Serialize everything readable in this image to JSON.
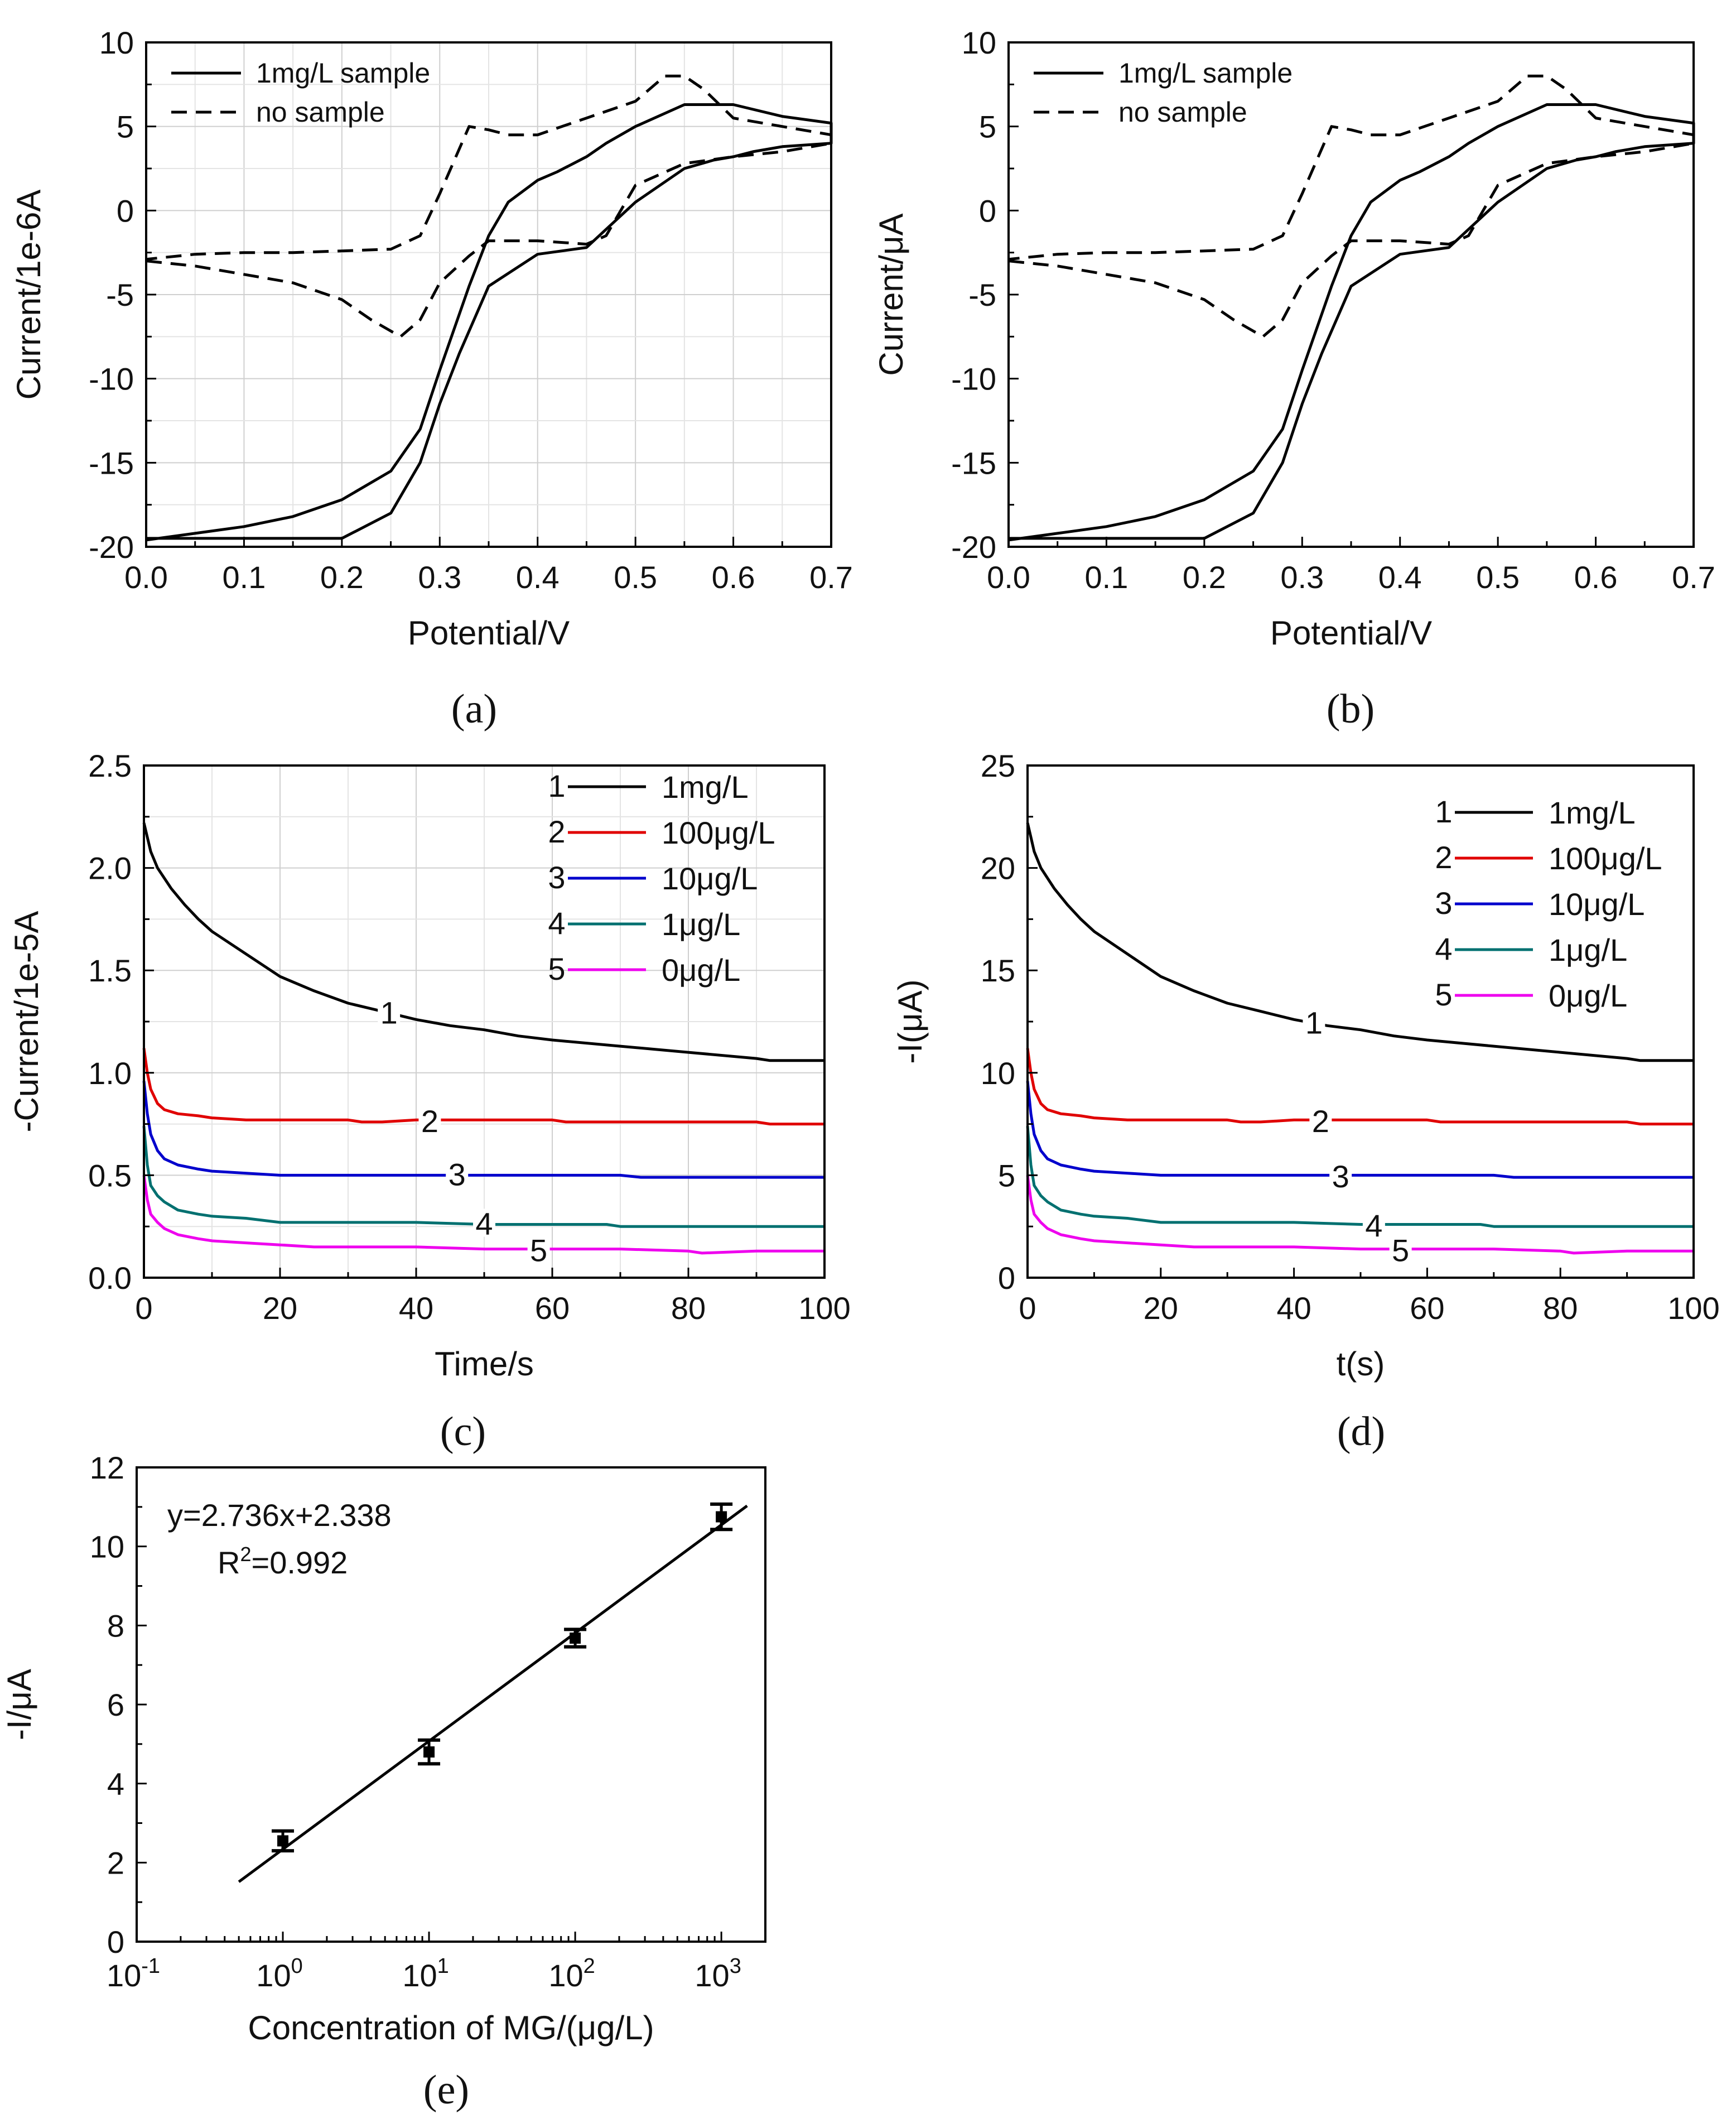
{
  "chart_data": [
    {
      "id": "a",
      "type": "line",
      "caption": "(a)",
      "xlabel": "Potential/V",
      "ylabel": "Current/1e-6A",
      "xlim": [
        0,
        0.7
      ],
      "ylim": [
        -20,
        10
      ],
      "xticks": [
        "0.0",
        "0.1",
        "0.2",
        "0.3",
        "0.4",
        "0.5",
        "0.6",
        "0.7"
      ],
      "yticks": [
        "-20",
        "-15",
        "-10",
        "-5",
        "0",
        "5",
        "10"
      ],
      "grid": true,
      "legend_position": "top-left",
      "series": [
        {
          "name": "1mg/L sample",
          "style": "solid",
          "x": [
            0.0,
            0.05,
            0.1,
            0.15,
            0.2,
            0.25,
            0.28,
            0.3,
            0.32,
            0.35,
            0.4,
            0.45,
            0.5,
            0.55,
            0.58,
            0.6,
            0.62,
            0.65,
            0.7,
            0.7,
            0.65,
            0.6,
            0.55,
            0.5,
            0.47,
            0.45,
            0.42,
            0.4,
            0.37,
            0.35,
            0.33,
            0.3,
            0.28,
            0.25,
            0.2,
            0.15,
            0.1,
            0.05,
            0.0
          ],
          "y": [
            -19.5,
            -19.5,
            -19.5,
            -19.5,
            -19.5,
            -18.0,
            -15.0,
            -11.5,
            -8.5,
            -4.5,
            -2.6,
            -2.2,
            0.5,
            2.5,
            3.0,
            3.2,
            3.5,
            3.8,
            4.0,
            5.2,
            5.6,
            6.3,
            6.3,
            5.0,
            4.0,
            3.2,
            2.3,
            1.8,
            0.5,
            -1.5,
            -4.5,
            -9.5,
            -13.0,
            -15.5,
            -17.2,
            -18.2,
            -18.8,
            -19.2,
            -19.6
          ]
        },
        {
          "name": "no sample",
          "style": "dashed",
          "x": [
            0.0,
            0.05,
            0.1,
            0.15,
            0.2,
            0.23,
            0.26,
            0.28,
            0.3,
            0.33,
            0.35,
            0.4,
            0.45,
            0.47,
            0.5,
            0.55,
            0.6,
            0.65,
            0.7,
            0.7,
            0.65,
            0.6,
            0.57,
            0.55,
            0.53,
            0.5,
            0.45,
            0.4,
            0.37,
            0.35,
            0.33,
            0.3,
            0.28,
            0.25,
            0.2,
            0.15,
            0.1,
            0.05,
            0.0
          ],
          "y": [
            -3.0,
            -3.3,
            -3.8,
            -4.3,
            -5.3,
            -6.5,
            -7.5,
            -6.5,
            -4.3,
            -2.7,
            -1.8,
            -1.8,
            -2.0,
            -1.5,
            1.5,
            2.8,
            3.2,
            3.5,
            4.0,
            4.5,
            5.0,
            5.5,
            7.2,
            8.0,
            8.0,
            6.5,
            5.5,
            4.5,
            4.5,
            4.8,
            5.0,
            1.0,
            -1.5,
            -2.3,
            -2.4,
            -2.5,
            -2.5,
            -2.6,
            -2.9
          ]
        }
      ]
    },
    {
      "id": "b",
      "type": "line",
      "caption": "(b)",
      "xlabel": "Potential/V",
      "ylabel": "Current/μA",
      "xlim": [
        0,
        0.7
      ],
      "ylim": [
        -20,
        10
      ],
      "xticks": [
        "0.0",
        "0.1",
        "0.2",
        "0.3",
        "0.4",
        "0.5",
        "0.6",
        "0.7"
      ],
      "yticks": [
        "-20",
        "-15",
        "-10",
        "-5",
        "0",
        "5",
        "10"
      ],
      "grid": false,
      "legend_position": "top-left",
      "series": [
        {
          "name": "1mg/L sample",
          "style": "solid",
          "x": [
            0.0,
            0.05,
            0.1,
            0.15,
            0.2,
            0.25,
            0.28,
            0.3,
            0.32,
            0.35,
            0.4,
            0.45,
            0.5,
            0.55,
            0.58,
            0.6,
            0.62,
            0.65,
            0.7,
            0.7,
            0.65,
            0.6,
            0.55,
            0.5,
            0.47,
            0.45,
            0.42,
            0.4,
            0.37,
            0.35,
            0.33,
            0.3,
            0.28,
            0.25,
            0.2,
            0.15,
            0.1,
            0.05,
            0.0
          ],
          "y": [
            -19.5,
            -19.5,
            -19.5,
            -19.5,
            -19.5,
            -18.0,
            -15.0,
            -11.5,
            -8.5,
            -4.5,
            -2.6,
            -2.2,
            0.5,
            2.5,
            3.0,
            3.2,
            3.5,
            3.8,
            4.0,
            5.2,
            5.6,
            6.3,
            6.3,
            5.0,
            4.0,
            3.2,
            2.3,
            1.8,
            0.5,
            -1.5,
            -4.5,
            -9.5,
            -13.0,
            -15.5,
            -17.2,
            -18.2,
            -18.8,
            -19.2,
            -19.6
          ]
        },
        {
          "name": "no sample",
          "style": "dashed",
          "x": [
            0.0,
            0.05,
            0.1,
            0.15,
            0.2,
            0.23,
            0.26,
            0.28,
            0.3,
            0.33,
            0.35,
            0.4,
            0.45,
            0.47,
            0.5,
            0.55,
            0.6,
            0.65,
            0.7,
            0.7,
            0.65,
            0.6,
            0.57,
            0.55,
            0.53,
            0.5,
            0.45,
            0.4,
            0.37,
            0.35,
            0.33,
            0.3,
            0.28,
            0.25,
            0.2,
            0.15,
            0.1,
            0.05,
            0.0
          ],
          "y": [
            -3.0,
            -3.3,
            -3.8,
            -4.3,
            -5.3,
            -6.5,
            -7.5,
            -6.5,
            -4.3,
            -2.7,
            -1.8,
            -1.8,
            -2.0,
            -1.5,
            1.5,
            2.8,
            3.2,
            3.5,
            4.0,
            4.5,
            5.0,
            5.5,
            7.2,
            8.0,
            8.0,
            6.5,
            5.5,
            4.5,
            4.5,
            4.8,
            5.0,
            1.0,
            -1.5,
            -2.3,
            -2.4,
            -2.5,
            -2.5,
            -2.6,
            -2.9
          ]
        }
      ]
    },
    {
      "id": "c",
      "type": "line",
      "caption": "(c)",
      "xlabel": "Time/s",
      "ylabel": "-Current/1e-5A",
      "xlim": [
        0,
        100
      ],
      "ylim": [
        0,
        2.5
      ],
      "xticks": [
        "0",
        "20",
        "40",
        "60",
        "80",
        "100"
      ],
      "yticks": [
        "0.0",
        "0.5",
        "1.0",
        "1.5",
        "2.0",
        "2.5"
      ],
      "grid": true,
      "legend_position": "top-right",
      "series": [
        {
          "num": "1",
          "name": "1mg/L",
          "color": "#000000",
          "x": [
            0,
            0.5,
            1,
            2,
            4,
            6,
            8,
            10,
            15,
            20,
            25,
            30,
            35,
            40,
            45,
            50,
            55,
            60,
            70,
            80,
            90,
            92,
            100
          ],
          "y": [
            2.22,
            2.15,
            2.08,
            2.0,
            1.9,
            1.82,
            1.75,
            1.69,
            1.58,
            1.47,
            1.4,
            1.34,
            1.3,
            1.26,
            1.23,
            1.21,
            1.18,
            1.16,
            1.13,
            1.1,
            1.07,
            1.06,
            1.06
          ],
          "label_at": [
            36,
            1.29
          ]
        },
        {
          "num": "2",
          "name": "100μg/L",
          "color": "#e00000",
          "x": [
            0,
            0.5,
            1,
            2,
            3,
            5,
            8,
            10,
            15,
            20,
            30,
            32,
            35,
            40,
            50,
            60,
            62,
            70,
            80,
            90,
            92,
            100
          ],
          "y": [
            1.12,
            1.0,
            0.92,
            0.85,
            0.82,
            0.8,
            0.79,
            0.78,
            0.77,
            0.77,
            0.77,
            0.76,
            0.76,
            0.77,
            0.77,
            0.77,
            0.76,
            0.76,
            0.76,
            0.76,
            0.75,
            0.75
          ],
          "label_at": [
            42,
            0.76
          ]
        },
        {
          "num": "3",
          "name": "10μg/L",
          "color": "#0000cc",
          "x": [
            0,
            0.5,
            1,
            2,
            3,
            5,
            8,
            10,
            15,
            20,
            30,
            40,
            50,
            60,
            70,
            73,
            80,
            90,
            100
          ],
          "y": [
            0.96,
            0.8,
            0.7,
            0.62,
            0.58,
            0.55,
            0.53,
            0.52,
            0.51,
            0.5,
            0.5,
            0.5,
            0.5,
            0.5,
            0.5,
            0.49,
            0.49,
            0.49,
            0.49
          ],
          "label_at": [
            46,
            0.5
          ]
        },
        {
          "num": "4",
          "name": "1μg/L",
          "color": "#007070",
          "x": [
            0,
            0.5,
            1,
            2,
            3,
            5,
            8,
            10,
            15,
            20,
            30,
            40,
            50,
            60,
            68,
            70,
            80,
            90,
            100
          ],
          "y": [
            0.74,
            0.55,
            0.45,
            0.4,
            0.37,
            0.33,
            0.31,
            0.3,
            0.29,
            0.27,
            0.27,
            0.27,
            0.26,
            0.26,
            0.26,
            0.25,
            0.25,
            0.25,
            0.25
          ],
          "label_at": [
            50,
            0.26
          ]
        },
        {
          "num": "5",
          "name": "0μg/L",
          "color": "#ee00ee",
          "x": [
            0,
            0.5,
            1,
            2,
            3,
            5,
            8,
            10,
            15,
            20,
            25,
            30,
            40,
            50,
            60,
            70,
            80,
            82,
            90,
            100
          ],
          "y": [
            0.5,
            0.38,
            0.31,
            0.27,
            0.24,
            0.21,
            0.19,
            0.18,
            0.17,
            0.16,
            0.15,
            0.15,
            0.15,
            0.14,
            0.14,
            0.14,
            0.13,
            0.12,
            0.13,
            0.13
          ],
          "label_at": [
            58,
            0.13
          ]
        }
      ]
    },
    {
      "id": "d",
      "type": "line",
      "caption": "(d)",
      "xlabel": "t(s)",
      "ylabel": "-I(μA)",
      "xlim": [
        0,
        100
      ],
      "ylim": [
        0,
        25
      ],
      "xticks": [
        "0",
        "20",
        "40",
        "60",
        "80",
        "100"
      ],
      "yticks": [
        "0",
        "5",
        "10",
        "15",
        "20",
        "25"
      ],
      "grid": false,
      "legend_position": "top-right",
      "series": [
        {
          "num": "1",
          "name": "1mg/L",
          "color": "#000000",
          "x": [
            0,
            0.5,
            1,
            2,
            4,
            6,
            8,
            10,
            15,
            20,
            25,
            30,
            35,
            40,
            45,
            50,
            55,
            60,
            70,
            80,
            90,
            92,
            100
          ],
          "y": [
            22.2,
            21.5,
            20.8,
            20.0,
            19.0,
            18.2,
            17.5,
            16.9,
            15.8,
            14.7,
            14.0,
            13.4,
            13.0,
            12.6,
            12.3,
            12.1,
            11.8,
            11.6,
            11.3,
            11.0,
            10.7,
            10.6,
            10.6
          ],
          "label_at": [
            43,
            12.4
          ]
        },
        {
          "num": "2",
          "name": "100μg/L",
          "color": "#e00000",
          "x": [
            0,
            0.5,
            1,
            2,
            3,
            5,
            8,
            10,
            15,
            20,
            30,
            32,
            35,
            40,
            50,
            60,
            62,
            70,
            80,
            90,
            92,
            100
          ],
          "y": [
            11.2,
            10.0,
            9.2,
            8.5,
            8.2,
            8.0,
            7.9,
            7.8,
            7.7,
            7.7,
            7.7,
            7.6,
            7.6,
            7.7,
            7.7,
            7.7,
            7.6,
            7.6,
            7.6,
            7.6,
            7.5,
            7.5
          ],
          "label_at": [
            44,
            7.6
          ]
        },
        {
          "num": "3",
          "name": "10μg/L",
          "color": "#0000cc",
          "x": [
            0,
            0.5,
            1,
            2,
            3,
            5,
            8,
            10,
            15,
            20,
            30,
            40,
            50,
            60,
            70,
            73,
            80,
            90,
            100
          ],
          "y": [
            9.6,
            8.0,
            7.0,
            6.2,
            5.8,
            5.5,
            5.3,
            5.2,
            5.1,
            5.0,
            5.0,
            5.0,
            5.0,
            5.0,
            5.0,
            4.9,
            4.9,
            4.9,
            4.9
          ],
          "label_at": [
            47,
            4.9
          ]
        },
        {
          "num": "4",
          "name": "1μg/L",
          "color": "#007070",
          "x": [
            0,
            0.5,
            1,
            2,
            3,
            5,
            8,
            10,
            15,
            20,
            30,
            40,
            50,
            60,
            68,
            70,
            80,
            90,
            100
          ],
          "y": [
            7.4,
            5.5,
            4.5,
            4.0,
            3.7,
            3.3,
            3.1,
            3.0,
            2.9,
            2.7,
            2.7,
            2.7,
            2.6,
            2.6,
            2.6,
            2.5,
            2.5,
            2.5,
            2.5
          ],
          "label_at": [
            52,
            2.5
          ]
        },
        {
          "num": "5",
          "name": "0μg/L",
          "color": "#ee00ee",
          "x": [
            0,
            0.5,
            1,
            2,
            3,
            5,
            8,
            10,
            15,
            20,
            25,
            30,
            40,
            50,
            60,
            70,
            80,
            82,
            90,
            100
          ],
          "y": [
            5.0,
            3.8,
            3.1,
            2.7,
            2.4,
            2.1,
            1.9,
            1.8,
            1.7,
            1.6,
            1.5,
            1.5,
            1.5,
            1.4,
            1.4,
            1.4,
            1.3,
            1.2,
            1.3,
            1.3
          ],
          "label_at": [
            56,
            1.3
          ]
        }
      ]
    },
    {
      "id": "e",
      "type": "scatter",
      "caption": "(e)",
      "xlabel": "Concentration of MG/(μg/L)",
      "ylabel": "-I/μA",
      "xscale": "log",
      "xlim": [
        0.1,
        2000
      ],
      "ylim": [
        0,
        12
      ],
      "xticks": [
        "-1",
        "0",
        "1",
        "2",
        "3"
      ],
      "tick_base": "10",
      "yticks": [
        "0",
        "2",
        "4",
        "6",
        "8",
        "10",
        "12"
      ],
      "grid": false,
      "points": {
        "x": [
          1,
          10,
          100,
          1000
        ],
        "y": [
          2.55,
          4.8,
          7.68,
          10.75
        ],
        "err": [
          0.25,
          0.3,
          0.22,
          0.32
        ]
      },
      "fit": {
        "slope": 2.736,
        "intercept": 2.338,
        "x_range": [
          0.5,
          1500
        ]
      },
      "annotations": {
        "equation": "y=2.736x+2.338",
        "r2_prefix": "R",
        "r2_sup": "2",
        "r2_value": "=0.992"
      }
    }
  ]
}
